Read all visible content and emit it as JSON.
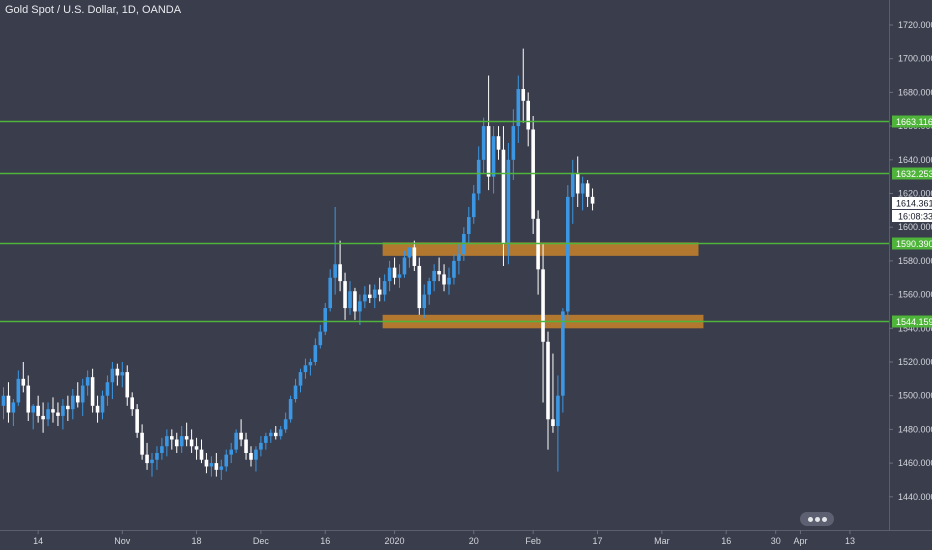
{
  "chart": {
    "title": "Gold Spot / U.S. Dollar, 1D, OANDA"
  },
  "chart_data": {
    "type": "candlestick",
    "title": "Gold Spot / U.S. Dollar, 1D, OANDA",
    "ylim": [
      1424,
      1740
    ],
    "y_ticks": [
      1440,
      1460,
      1480,
      1500,
      1520,
      1540,
      1560,
      1580,
      1600,
      1620,
      1640,
      1660,
      1680,
      1700,
      1720
    ],
    "x_ticks": [
      {
        "label": "14",
        "bar": 7
      },
      {
        "label": "Nov",
        "bar": 24
      },
      {
        "label": "18",
        "bar": 39
      },
      {
        "label": "Dec",
        "bar": 52
      },
      {
        "label": "16",
        "bar": 65
      },
      {
        "label": "2020",
        "bar": 79
      },
      {
        "label": "20",
        "bar": 95
      },
      {
        "label": "Feb",
        "bar": 107
      },
      {
        "label": "17",
        "bar": 120
      },
      {
        "label": "Mar",
        "bar": 133
      },
      {
        "label": "16",
        "bar": 146
      },
      {
        "label": "30",
        "bar": 156
      },
      {
        "label": "Apr",
        "bar": 161
      },
      {
        "label": "13",
        "bar": 171
      }
    ],
    "ohlc": [
      [
        1494,
        1505,
        1486,
        1500
      ],
      [
        1500,
        1508,
        1484,
        1490
      ],
      [
        1490,
        1498,
        1482,
        1496
      ],
      [
        1496,
        1515,
        1494,
        1510
      ],
      [
        1510,
        1520,
        1502,
        1506
      ],
      [
        1506,
        1512,
        1485,
        1490
      ],
      [
        1490,
        1495,
        1480,
        1494
      ],
      [
        1494,
        1500,
        1484,
        1488
      ],
      [
        1488,
        1496,
        1478,
        1486
      ],
      [
        1486,
        1496,
        1482,
        1492
      ],
      [
        1492,
        1499,
        1484,
        1490
      ],
      [
        1490,
        1496,
        1482,
        1488
      ],
      [
        1488,
        1498,
        1480,
        1494
      ],
      [
        1494,
        1500,
        1485,
        1492
      ],
      [
        1492,
        1504,
        1486,
        1500
      ],
      [
        1500,
        1508,
        1493,
        1496
      ],
      [
        1496,
        1510,
        1488,
        1506
      ],
      [
        1506,
        1515,
        1500,
        1511
      ],
      [
        1511,
        1516,
        1490,
        1494
      ],
      [
        1494,
        1500,
        1484,
        1490
      ],
      [
        1490,
        1503,
        1486,
        1500
      ],
      [
        1500,
        1512,
        1494,
        1508
      ],
      [
        1508,
        1520,
        1498,
        1516
      ],
      [
        1516,
        1519,
        1506,
        1512
      ],
      [
        1512,
        1520,
        1505,
        1514
      ],
      [
        1514,
        1518,
        1494,
        1499
      ],
      [
        1499,
        1502,
        1488,
        1492
      ],
      [
        1492,
        1495,
        1475,
        1478
      ],
      [
        1478,
        1483,
        1462,
        1465
      ],
      [
        1465,
        1472,
        1456,
        1460
      ],
      [
        1460,
        1466,
        1452,
        1462
      ],
      [
        1462,
        1470,
        1456,
        1466
      ],
      [
        1466,
        1475,
        1462,
        1470
      ],
      [
        1470,
        1480,
        1464,
        1476
      ],
      [
        1476,
        1480,
        1468,
        1474
      ],
      [
        1474,
        1478,
        1466,
        1470
      ],
      [
        1470,
        1482,
        1466,
        1476
      ],
      [
        1476,
        1484,
        1470,
        1474
      ],
      [
        1474,
        1480,
        1466,
        1470
      ],
      [
        1470,
        1475,
        1462,
        1468
      ],
      [
        1468,
        1474,
        1460,
        1462
      ],
      [
        1462,
        1466,
        1454,
        1458
      ],
      [
        1458,
        1464,
        1452,
        1460
      ],
      [
        1460,
        1466,
        1452,
        1456
      ],
      [
        1456,
        1462,
        1450,
        1458
      ],
      [
        1458,
        1468,
        1455,
        1465
      ],
      [
        1465,
        1472,
        1460,
        1468
      ],
      [
        1468,
        1480,
        1466,
        1478
      ],
      [
        1478,
        1486,
        1470,
        1474
      ],
      [
        1474,
        1478,
        1462,
        1466
      ],
      [
        1466,
        1470,
        1458,
        1462
      ],
      [
        1462,
        1470,
        1455,
        1468
      ],
      [
        1468,
        1476,
        1464,
        1472
      ],
      [
        1472,
        1478,
        1468,
        1476
      ],
      [
        1476,
        1480,
        1472,
        1478
      ],
      [
        1478,
        1482,
        1474,
        1476
      ],
      [
        1476,
        1482,
        1474,
        1480
      ],
      [
        1480,
        1490,
        1478,
        1486
      ],
      [
        1486,
        1500,
        1484,
        1498
      ],
      [
        1498,
        1510,
        1496,
        1506
      ],
      [
        1506,
        1516,
        1502,
        1514
      ],
      [
        1514,
        1522,
        1510,
        1518
      ],
      [
        1518,
        1522,
        1512,
        1520
      ],
      [
        1520,
        1534,
        1518,
        1530
      ],
      [
        1530,
        1542,
        1528,
        1538
      ],
      [
        1538,
        1555,
        1536,
        1552
      ],
      [
        1552,
        1575,
        1550,
        1570
      ],
      [
        1570,
        1612,
        1560,
        1578
      ],
      [
        1578,
        1592,
        1562,
        1568
      ],
      [
        1568,
        1573,
        1545,
        1552
      ],
      [
        1552,
        1568,
        1548,
        1562
      ],
      [
        1562,
        1564,
        1545,
        1550
      ],
      [
        1550,
        1560,
        1542,
        1556
      ],
      [
        1556,
        1565,
        1552,
        1560
      ],
      [
        1560,
        1566,
        1555,
        1558
      ],
      [
        1558,
        1566,
        1552,
        1563
      ],
      [
        1563,
        1570,
        1556,
        1560
      ],
      [
        1560,
        1572,
        1556,
        1568
      ],
      [
        1568,
        1580,
        1562,
        1576
      ],
      [
        1576,
        1582,
        1566,
        1570
      ],
      [
        1570,
        1578,
        1564,
        1572
      ],
      [
        1572,
        1586,
        1570,
        1582
      ],
      [
        1582,
        1590,
        1576,
        1588
      ],
      [
        1588,
        1592,
        1574,
        1577
      ],
      [
        1577,
        1582,
        1548,
        1552
      ],
      [
        1552,
        1566,
        1546,
        1560
      ],
      [
        1560,
        1570,
        1554,
        1568
      ],
      [
        1568,
        1578,
        1562,
        1574
      ],
      [
        1574,
        1582,
        1568,
        1572
      ],
      [
        1572,
        1578,
        1562,
        1566
      ],
      [
        1566,
        1576,
        1560,
        1570
      ],
      [
        1570,
        1584,
        1566,
        1580
      ],
      [
        1580,
        1590,
        1572,
        1584
      ],
      [
        1584,
        1600,
        1580,
        1596
      ],
      [
        1596,
        1612,
        1590,
        1606
      ],
      [
        1606,
        1625,
        1602,
        1620
      ],
      [
        1620,
        1648,
        1616,
        1640
      ],
      [
        1640,
        1665,
        1632,
        1660
      ],
      [
        1660,
        1690,
        1622,
        1630
      ],
      [
        1630,
        1660,
        1620,
        1654
      ],
      [
        1654,
        1660,
        1640,
        1646
      ],
      [
        1646,
        1660,
        1577,
        1590
      ],
      [
        1590,
        1650,
        1578,
        1640
      ],
      [
        1640,
        1670,
        1628,
        1660
      ],
      [
        1660,
        1690,
        1650,
        1682
      ],
      [
        1682,
        1706,
        1662,
        1675
      ],
      [
        1675,
        1680,
        1648,
        1658
      ],
      [
        1658,
        1666,
        1596,
        1605
      ],
      [
        1605,
        1610,
        1560,
        1575
      ],
      [
        1575,
        1590,
        1496,
        1532
      ],
      [
        1532,
        1538,
        1468,
        1486
      ],
      [
        1486,
        1525,
        1478,
        1482
      ],
      [
        1482,
        1512,
        1455,
        1500
      ],
      [
        1500,
        1552,
        1490,
        1550
      ],
      [
        1550,
        1625,
        1545,
        1618
      ],
      [
        1618,
        1640,
        1602,
        1632
      ],
      [
        1632,
        1642,
        1612,
        1620
      ],
      [
        1620,
        1630,
        1610,
        1626
      ],
      [
        1626,
        1628,
        1612,
        1618
      ],
      [
        1618,
        1623,
        1610,
        1614
      ]
    ],
    "horizontal_levels": [
      {
        "value": 1663.116,
        "label": "1663.116"
      },
      {
        "value": 1632.253,
        "label": "1632.253"
      },
      {
        "value": 1590.39,
        "label": "1590.390"
      },
      {
        "value": 1544.159,
        "label": "1544.159"
      }
    ],
    "zones": [
      {
        "from_bar": 77,
        "to_bar": 140,
        "low": 1583,
        "high": 1591
      },
      {
        "from_bar": 77,
        "to_bar": 141,
        "low": 1540,
        "high": 1548
      }
    ],
    "current_price": {
      "value": 1614.361,
      "label": "1614.361",
      "countdown": "16:08:33"
    },
    "colors": {
      "background": "#3a3d4c",
      "up": "#3b97e3",
      "down": "#ffffff",
      "level": "#4fb43a",
      "zone": "#c8822a",
      "axis_text": "#d4d6dc"
    }
  }
}
